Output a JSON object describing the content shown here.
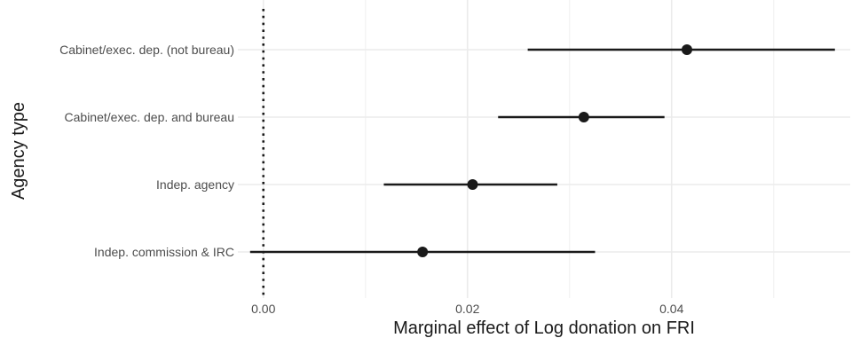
{
  "chart_data": {
    "type": "scatter",
    "style": "point-range (coefficient plot)",
    "title": "",
    "xlabel": "Marginal effect of Log donation on FRI",
    "ylabel": "Agency type",
    "xlim": [
      -0.0025,
      0.0575
    ],
    "x_ticks": [
      {
        "value": 0.0,
        "label": "0.00"
      },
      {
        "value": 0.02,
        "label": "0.02"
      },
      {
        "value": 0.04,
        "label": "0.04"
      }
    ],
    "x_minor_gridlines": [
      0.01,
      0.03,
      0.05
    ],
    "reference_line": {
      "x": 0,
      "style": "dotted"
    },
    "grid": true,
    "legend": "none",
    "categories": [
      "Cabinet/exec. dep. (not bureau)",
      "Cabinet/exec. dep. and bureau",
      "Indep. agency",
      "Indep. commission & IRC"
    ],
    "series": [
      {
        "estimates": [
          0.0415,
          0.0314,
          0.0205,
          0.0156
        ],
        "lower": [
          0.0259,
          0.023,
          0.0118,
          -0.0013
        ],
        "upper": [
          0.056,
          0.0393,
          0.0288,
          0.0325
        ]
      }
    ],
    "colors": {
      "points": "#1a1a1a",
      "grid_major": "#ebebeb",
      "grid_minor": "#f2f2f2",
      "reference": "#1a1a1a"
    }
  }
}
